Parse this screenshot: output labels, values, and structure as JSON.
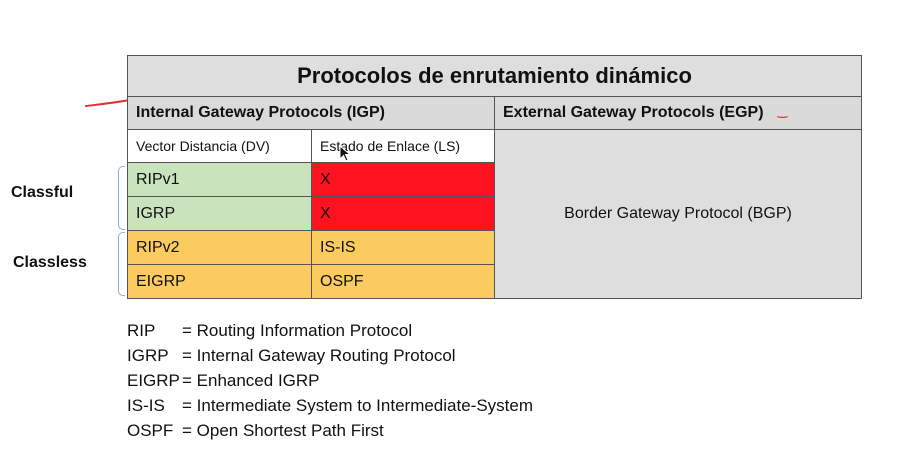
{
  "title": "Protocolos de enrutamiento dinámico",
  "igp_header": "Internal Gateway Protocols (IGP)",
  "egp_header": "External Gateway Protocols (EGP)",
  "dv_header": "Vector Distancia (DV)",
  "ls_header": "Estado de Enlace (LS)",
  "rows": [
    {
      "dv": "RIPv1",
      "ls": "X"
    },
    {
      "dv": "IGRP",
      "ls": "X"
    },
    {
      "dv": "RIPv2",
      "ls": "IS-IS"
    },
    {
      "dv": "EIGRP",
      "ls": "OSPF"
    }
  ],
  "egp_value": "Border Gateway Protocol (BGP)",
  "side_labels": {
    "classful": "Classful",
    "classless": "Classless"
  },
  "legend": [
    {
      "abbr": "RIP",
      "desc": "= Routing Information Protocol"
    },
    {
      "abbr": "IGRP",
      "desc": "= Internal Gateway Routing Protocol"
    },
    {
      "abbr": "EIGRP",
      "desc": "= Enhanced IGRP"
    },
    {
      "abbr": "IS-IS",
      "desc": "= Intermediate System to Intermediate-System"
    },
    {
      "abbr": "OSPF",
      "desc": "= Open Shortest Path First"
    }
  ],
  "colors": {
    "classful_dv": "#c9e3bd",
    "classful_ls": "#ff1220",
    "classless": "#fbcb60",
    "header_gray": "#dedede",
    "annotation_red": "#e03030"
  }
}
